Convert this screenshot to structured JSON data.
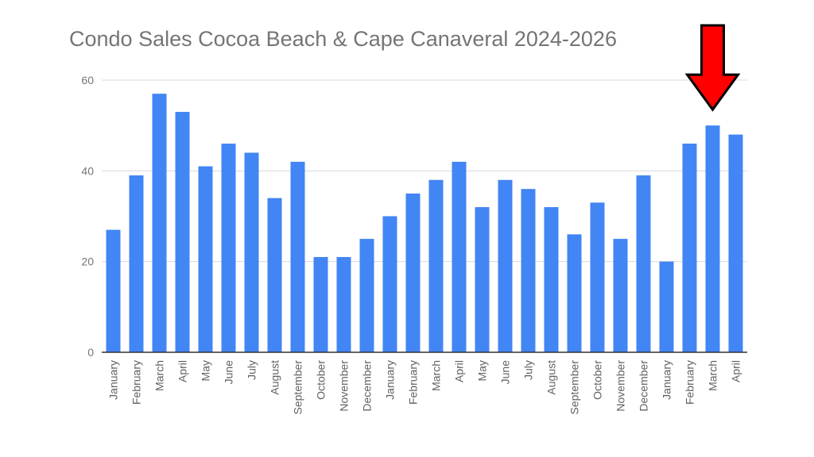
{
  "chart_data": {
    "type": "bar",
    "title": "Condo Sales Cocoa Beach & Cape Canaveral 2024-2026",
    "xlabel": "",
    "ylabel": "",
    "ylim": [
      0,
      60
    ],
    "yticks": [
      0,
      20,
      40,
      60
    ],
    "grid": true,
    "legend": "none",
    "bar_color": "#4285f4",
    "categories": [
      "January",
      "February",
      "March",
      "April",
      "May",
      "June",
      "July",
      "August",
      "September",
      "October",
      "November",
      "December",
      "January",
      "February",
      "March",
      "April",
      "May",
      "June",
      "July",
      "August",
      "September",
      "October",
      "November",
      "December",
      "January",
      "February",
      "March",
      "April"
    ],
    "values": [
      27,
      39,
      57,
      53,
      41,
      46,
      44,
      34,
      42,
      21,
      21,
      25,
      30,
      35,
      38,
      42,
      32,
      38,
      36,
      32,
      26,
      33,
      25,
      39,
      20,
      46,
      50,
      48
    ],
    "annotation": {
      "type": "arrow",
      "target_index": 26,
      "color": "#ff0000"
    }
  }
}
